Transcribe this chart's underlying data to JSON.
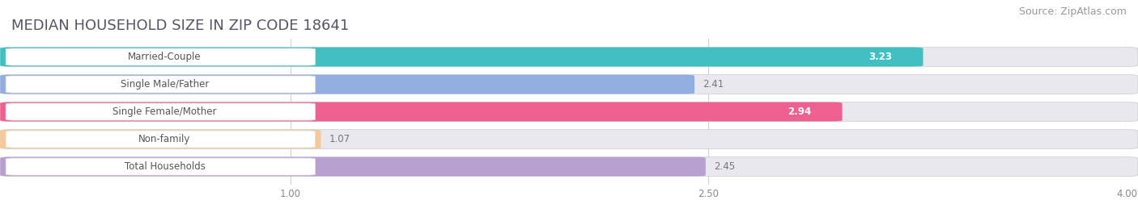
{
  "title": "MEDIAN HOUSEHOLD SIZE IN ZIP CODE 18641",
  "source": "Source: ZipAtlas.com",
  "categories": [
    "Married-Couple",
    "Single Male/Father",
    "Single Female/Mother",
    "Non-family",
    "Total Households"
  ],
  "values": [
    3.23,
    2.41,
    2.94,
    1.07,
    2.45
  ],
  "bar_colors": [
    "#40c0c0",
    "#92aee0",
    "#ee6090",
    "#f5ca98",
    "#b8a0d0"
  ],
  "value_inside": [
    true,
    false,
    true,
    false,
    false
  ],
  "xlim_min": 0.0,
  "xlim_max": 4.0,
  "xticks": [
    1.0,
    2.5,
    4.0
  ],
  "xtick_labels": [
    "1.00",
    "2.50",
    "4.00"
  ],
  "title_fontsize": 13,
  "source_fontsize": 9,
  "label_fontsize": 8.5,
  "value_fontsize": 8.5,
  "bar_height": 0.62,
  "background_color": "#ffffff",
  "bar_bg_color": "#e8e8ee",
  "grid_color": "#d0d0d8",
  "label_text_color": "#555555",
  "value_inside_color": "#ffffff",
  "value_outside_color": "#777777"
}
